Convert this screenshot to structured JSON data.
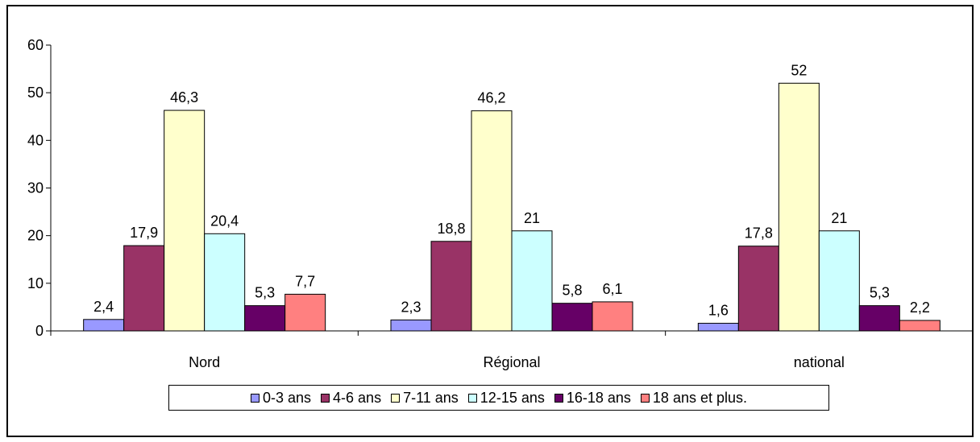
{
  "chart_data": {
    "type": "bar",
    "title": "",
    "xlabel": "",
    "ylabel": "",
    "categories": [
      "Nord",
      "Régional",
      "national"
    ],
    "ylim": [
      0,
      60
    ],
    "yticks": [
      0,
      10,
      20,
      30,
      40,
      50,
      60
    ],
    "grid": false,
    "legend_position": "bottom",
    "series": [
      {
        "name": "0-3 ans",
        "color": "#9999FF",
        "values": [
          2.4,
          2.3,
          1.6
        ],
        "labels": [
          "2,4",
          "2,3",
          "1,6"
        ]
      },
      {
        "name": "4-6 ans",
        "color": "#993366",
        "values": [
          17.9,
          18.8,
          17.8
        ],
        "labels": [
          "17,9",
          "18,8",
          "17,8"
        ]
      },
      {
        "name": "7-11 ans",
        "color": "#FFFFCC",
        "values": [
          46.3,
          46.2,
          52
        ],
        "labels": [
          "46,3",
          "46,2",
          "52"
        ]
      },
      {
        "name": "12-15 ans",
        "color": "#CCFFFF",
        "values": [
          20.4,
          21,
          21
        ],
        "labels": [
          "20,4",
          "21",
          "21"
        ]
      },
      {
        "name": "16-18 ans",
        "color": "#660066",
        "values": [
          5.3,
          5.8,
          5.3
        ],
        "labels": [
          "5,3",
          "5,8",
          "5,3"
        ]
      },
      {
        "name": "18 ans et plus.",
        "color": "#FF8080",
        "values": [
          7.7,
          6.1,
          2.2
        ],
        "labels": [
          "7,7",
          "6,1",
          "2,2"
        ]
      }
    ]
  }
}
